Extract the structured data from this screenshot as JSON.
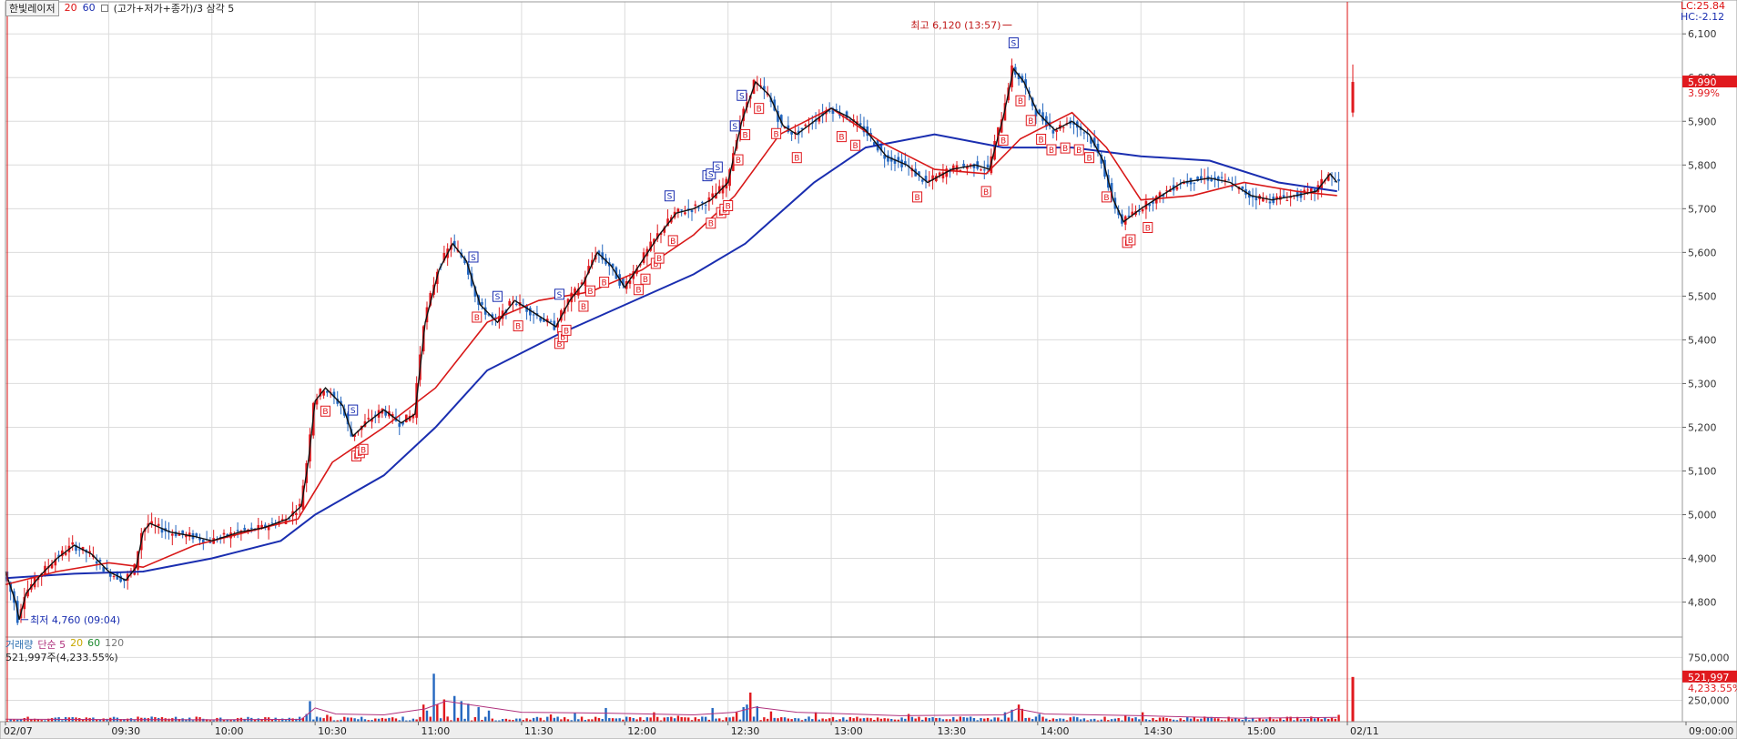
{
  "header": {
    "stock_name": "한빛레이저",
    "ma_short": "20",
    "ma_long": "60",
    "indicator_label": "(고가+저가+종가)/3 삼각 5"
  },
  "status": {
    "lc": "LC:25.84",
    "hc": "HC:-2.12"
  },
  "annotations": {
    "high": "최고 6,120 (13:57)",
    "low": "최저 4,760 (09:04)",
    "current_price": "5,990",
    "current_change": "3.99%",
    "current_volume": "521,997",
    "current_volume_pct": "4,233.55%"
  },
  "volume_header": {
    "label": "거래량",
    "ma_type": "단순 5",
    "p20": "20",
    "p60": "60",
    "p120": "120",
    "summary": "521,997주(4,233.55%)"
  },
  "colors": {
    "up": "#e0191e",
    "down": "#2467c0",
    "ma_short": "#d81818",
    "ma_long": "#1a2eb0",
    "ma_tri": "#111111",
    "grid": "#dcdcdc"
  },
  "chart_data": {
    "type": "candlestick",
    "price_axis": {
      "ylim": [
        4720,
        6140
      ],
      "ticks": [
        "4,800",
        "4,900",
        "5,000",
        "5,100",
        "5,200",
        "5,300",
        "5,400",
        "5,500",
        "5,600",
        "5,700",
        "5,800",
        "5,900",
        "6,000",
        "6,100"
      ]
    },
    "volume_axis": {
      "ylim": [
        0,
        860000
      ],
      "ticks": [
        "250,000",
        "500,000",
        "750,000"
      ]
    },
    "time_axis": {
      "labels": [
        "02/07",
        "09:30",
        "10:00",
        "10:30",
        "11:00",
        "11:30",
        "12:00",
        "12:30",
        "13:00",
        "13:30",
        "14:00",
        "14:30",
        "15:00",
        "02/11",
        "09:00:00"
      ],
      "label_x_minutes": [
        0,
        30,
        60,
        90,
        120,
        150,
        180,
        210,
        240,
        270,
        300,
        330,
        360,
        390,
        400
      ],
      "range_minutes": [
        0,
        390
      ]
    },
    "price_path": [
      [
        0,
        4870
      ],
      [
        3,
        4800
      ],
      [
        4,
        4760
      ],
      [
        6,
        4820
      ],
      [
        10,
        4860
      ],
      [
        15,
        4900
      ],
      [
        20,
        4930
      ],
      [
        25,
        4910
      ],
      [
        30,
        4870
      ],
      [
        35,
        4850
      ],
      [
        38,
        4880
      ],
      [
        40,
        4960
      ],
      [
        42,
        4980
      ],
      [
        48,
        4960
      ],
      [
        55,
        4950
      ],
      [
        60,
        4940
      ],
      [
        68,
        4960
      ],
      [
        75,
        4970
      ],
      [
        82,
        4990
      ],
      [
        86,
        5020
      ],
      [
        88,
        5120
      ],
      [
        90,
        5260
      ],
      [
        93,
        5290
      ],
      [
        98,
        5250
      ],
      [
        101,
        5180
      ],
      [
        105,
        5210
      ],
      [
        110,
        5240
      ],
      [
        115,
        5210
      ],
      [
        119,
        5230
      ],
      [
        122,
        5440
      ],
      [
        126,
        5560
      ],
      [
        130,
        5620
      ],
      [
        134,
        5580
      ],
      [
        138,
        5480
      ],
      [
        143,
        5440
      ],
      [
        148,
        5490
      ],
      [
        154,
        5460
      ],
      [
        160,
        5430
      ],
      [
        164,
        5490
      ],
      [
        168,
        5530
      ],
      [
        172,
        5600
      ],
      [
        176,
        5570
      ],
      [
        180,
        5520
      ],
      [
        185,
        5580
      ],
      [
        190,
        5640
      ],
      [
        195,
        5690
      ],
      [
        200,
        5700
      ],
      [
        205,
        5720
      ],
      [
        210,
        5760
      ],
      [
        214,
        5900
      ],
      [
        218,
        5990
      ],
      [
        222,
        5960
      ],
      [
        226,
        5890
      ],
      [
        230,
        5870
      ],
      [
        235,
        5900
      ],
      [
        240,
        5930
      ],
      [
        245,
        5910
      ],
      [
        250,
        5880
      ],
      [
        256,
        5820
      ],
      [
        262,
        5800
      ],
      [
        268,
        5760
      ],
      [
        275,
        5790
      ],
      [
        282,
        5800
      ],
      [
        286,
        5790
      ],
      [
        290,
        5910
      ],
      [
        293,
        6020
      ],
      [
        296,
        5990
      ],
      [
        300,
        5920
      ],
      [
        305,
        5880
      ],
      [
        310,
        5900
      ],
      [
        315,
        5870
      ],
      [
        319,
        5810
      ],
      [
        322,
        5720
      ],
      [
        325,
        5670
      ],
      [
        330,
        5700
      ],
      [
        336,
        5730
      ],
      [
        342,
        5760
      ],
      [
        350,
        5770
      ],
      [
        356,
        5760
      ],
      [
        362,
        5730
      ],
      [
        368,
        5720
      ],
      [
        375,
        5730
      ],
      [
        381,
        5740
      ],
      [
        385,
        5780
      ],
      [
        387,
        5760
      ]
    ],
    "next_day_candle": {
      "open": 5920,
      "high": 6030,
      "low": 5910,
      "close": 5990
    },
    "ma_short_path": [
      [
        0,
        4840
      ],
      [
        15,
        4870
      ],
      [
        30,
        4890
      ],
      [
        40,
        4880
      ],
      [
        55,
        4930
      ],
      [
        70,
        4960
      ],
      [
        85,
        4990
      ],
      [
        95,
        5120
      ],
      [
        110,
        5200
      ],
      [
        125,
        5290
      ],
      [
        140,
        5440
      ],
      [
        155,
        5490
      ],
      [
        170,
        5510
      ],
      [
        185,
        5560
      ],
      [
        200,
        5640
      ],
      [
        212,
        5730
      ],
      [
        225,
        5870
      ],
      [
        240,
        5930
      ],
      [
        255,
        5850
      ],
      [
        270,
        5790
      ],
      [
        285,
        5780
      ],
      [
        295,
        5860
      ],
      [
        310,
        5920
      ],
      [
        320,
        5840
      ],
      [
        330,
        5720
      ],
      [
        345,
        5730
      ],
      [
        360,
        5760
      ],
      [
        375,
        5740
      ],
      [
        387,
        5730
      ]
    ],
    "ma_long_path": [
      [
        0,
        4855
      ],
      [
        20,
        4865
      ],
      [
        40,
        4870
      ],
      [
        60,
        4900
      ],
      [
        80,
        4940
      ],
      [
        90,
        5000
      ],
      [
        110,
        5090
      ],
      [
        125,
        5200
      ],
      [
        140,
        5330
      ],
      [
        160,
        5410
      ],
      [
        180,
        5480
      ],
      [
        200,
        5550
      ],
      [
        215,
        5620
      ],
      [
        235,
        5760
      ],
      [
        250,
        5840
      ],
      [
        270,
        5870
      ],
      [
        290,
        5840
      ],
      [
        310,
        5840
      ],
      [
        330,
        5820
      ],
      [
        350,
        5810
      ],
      [
        370,
        5760
      ],
      [
        387,
        5740
      ]
    ],
    "signals": [
      {
        "t": 93,
        "type": "B"
      },
      {
        "t": 101,
        "type": "S"
      },
      {
        "t": 102,
        "type": "B"
      },
      {
        "t": 103,
        "type": "B"
      },
      {
        "t": 104,
        "type": "B"
      },
      {
        "t": 136,
        "type": "S"
      },
      {
        "t": 137,
        "type": "B"
      },
      {
        "t": 143,
        "type": "S"
      },
      {
        "t": 149,
        "type": "B"
      },
      {
        "t": 161,
        "type": "S"
      },
      {
        "t": 161,
        "type": "B"
      },
      {
        "t": 162,
        "type": "B"
      },
      {
        "t": 163,
        "type": "B"
      },
      {
        "t": 168,
        "type": "B"
      },
      {
        "t": 170,
        "type": "B"
      },
      {
        "t": 174,
        "type": "B"
      },
      {
        "t": 184,
        "type": "B"
      },
      {
        "t": 186,
        "type": "B"
      },
      {
        "t": 189,
        "type": "B"
      },
      {
        "t": 190,
        "type": "B"
      },
      {
        "t": 193,
        "type": "S"
      },
      {
        "t": 194,
        "type": "B"
      },
      {
        "t": 204,
        "type": "S"
      },
      {
        "t": 205,
        "type": "B"
      },
      {
        "t": 205,
        "type": "S"
      },
      {
        "t": 207,
        "type": "S"
      },
      {
        "t": 208,
        "type": "B"
      },
      {
        "t": 209,
        "type": "B"
      },
      {
        "t": 210,
        "type": "B"
      },
      {
        "t": 212,
        "type": "S"
      },
      {
        "t": 213,
        "type": "B"
      },
      {
        "t": 214,
        "type": "S"
      },
      {
        "t": 215,
        "type": "B"
      },
      {
        "t": 219,
        "type": "B"
      },
      {
        "t": 224,
        "type": "B"
      },
      {
        "t": 230,
        "type": "B"
      },
      {
        "t": 243,
        "type": "B"
      },
      {
        "t": 247,
        "type": "B"
      },
      {
        "t": 265,
        "type": "B"
      },
      {
        "t": 285,
        "type": "B"
      },
      {
        "t": 290,
        "type": "B"
      },
      {
        "t": 293,
        "type": "S"
      },
      {
        "t": 295,
        "type": "B"
      },
      {
        "t": 298,
        "type": "B"
      },
      {
        "t": 301,
        "type": "B"
      },
      {
        "t": 304,
        "type": "B"
      },
      {
        "t": 308,
        "type": "B"
      },
      {
        "t": 312,
        "type": "B"
      },
      {
        "t": 315,
        "type": "B"
      },
      {
        "t": 320,
        "type": "B"
      },
      {
        "t": 326,
        "type": "B"
      },
      {
        "t": 327,
        "type": "B"
      },
      {
        "t": 332,
        "type": "B"
      }
    ],
    "volume_spikes": [
      [
        0,
        12000
      ],
      [
        4,
        30000
      ],
      [
        40,
        45000
      ],
      [
        87,
        90000
      ],
      [
        88,
        240000
      ],
      [
        93,
        80000
      ],
      [
        121,
        200000
      ],
      [
        122,
        130000
      ],
      [
        124,
        560000
      ],
      [
        125,
        200000
      ],
      [
        127,
        260000
      ],
      [
        130,
        300000
      ],
      [
        132,
        240000
      ],
      [
        134,
        210000
      ],
      [
        137,
        170000
      ],
      [
        140,
        130000
      ],
      [
        158,
        85000
      ],
      [
        165,
        100000
      ],
      [
        174,
        160000
      ],
      [
        188,
        110000
      ],
      [
        195,
        70000
      ],
      [
        205,
        160000
      ],
      [
        212,
        110000
      ],
      [
        214,
        170000
      ],
      [
        215,
        200000
      ],
      [
        216,
        340000
      ],
      [
        218,
        180000
      ],
      [
        222,
        120000
      ],
      [
        235,
        110000
      ],
      [
        262,
        90000
      ],
      [
        290,
        110000
      ],
      [
        292,
        140000
      ],
      [
        294,
        200000
      ],
      [
        295,
        150000
      ],
      [
        300,
        90000
      ],
      [
        325,
        70000
      ],
      [
        330,
        110000
      ],
      [
        387,
        80000
      ]
    ],
    "volume_ma_path": [
      [
        0,
        30000
      ],
      [
        30,
        25000
      ],
      [
        60,
        22000
      ],
      [
        86,
        28000
      ],
      [
        90,
        160000
      ],
      [
        96,
        90000
      ],
      [
        110,
        80000
      ],
      [
        122,
        150000
      ],
      [
        128,
        240000
      ],
      [
        138,
        180000
      ],
      [
        150,
        110000
      ],
      [
        175,
        100000
      ],
      [
        200,
        80000
      ],
      [
        212,
        110000
      ],
      [
        218,
        170000
      ],
      [
        230,
        110000
      ],
      [
        260,
        70000
      ],
      [
        290,
        80000
      ],
      [
        294,
        150000
      ],
      [
        302,
        90000
      ],
      [
        330,
        70000
      ],
      [
        360,
        40000
      ],
      [
        387,
        50000
      ]
    ]
  }
}
